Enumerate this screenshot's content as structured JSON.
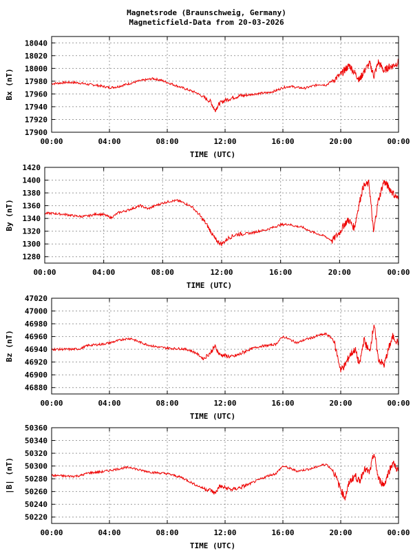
{
  "title": "Magnetsrode (Braunschweig, Germany)",
  "subtitle": "Magneticfield-Data from 20-03-2026",
  "series_color": "#ee0000",
  "chart_data": [
    {
      "type": "line",
      "ylabel": "Bx (nT)",
      "xlabel": "TIME (UTC)",
      "ylim": [
        17900,
        18050
      ],
      "yticks": [
        17900,
        17920,
        17940,
        17960,
        17980,
        18000,
        18020,
        18040
      ],
      "xlim": [
        0,
        24
      ],
      "xticks": [
        "00:00",
        "04:00",
        "08:00",
        "12:00",
        "16:00",
        "20:00",
        "00:00"
      ],
      "grid": true,
      "x": [
        0.0,
        0.5,
        1.0,
        1.5,
        2.0,
        2.5,
        3.0,
        3.5,
        4.0,
        4.5,
        5.0,
        5.5,
        6.0,
        6.5,
        7.0,
        7.5,
        8.0,
        8.5,
        9.0,
        9.5,
        10.0,
        10.5,
        11.0,
        11.3,
        11.6,
        12.0,
        12.5,
        13.0,
        13.5,
        14.0,
        14.5,
        15.0,
        15.5,
        16.0,
        16.5,
        17.0,
        17.5,
        18.0,
        18.5,
        19.0,
        19.5,
        20.0,
        20.3,
        20.6,
        21.0,
        21.3,
        21.6,
        22.0,
        22.3,
        22.6,
        23.0,
        23.3,
        23.6,
        24.0
      ],
      "y": [
        17976,
        17977,
        17978,
        17978,
        17977,
        17975,
        17974,
        17972,
        17970,
        17971,
        17974,
        17977,
        17980,
        17982,
        17984,
        17982,
        17978,
        17974,
        17970,
        17966,
        17962,
        17955,
        17948,
        17934,
        17945,
        17950,
        17954,
        17957,
        17958,
        17960,
        17961,
        17962,
        17965,
        17970,
        17972,
        17970,
        17969,
        17972,
        17975,
        17974,
        17982,
        17990,
        17998,
        18005,
        17992,
        17982,
        17995,
        18008,
        17988,
        18010,
        17996,
        18002,
        18004,
        18010
      ]
    },
    {
      "type": "line",
      "ylabel": "By (nT)",
      "xlabel": "TIME (UTC)",
      "ylim": [
        1270,
        1420
      ],
      "yticks": [
        1280,
        1300,
        1320,
        1340,
        1360,
        1380,
        1400,
        1420
      ],
      "xlim": [
        0,
        24
      ],
      "xticks": [
        "00:00",
        "04:00",
        "08:00",
        "12:00",
        "16:00",
        "20:00",
        "00:00"
      ],
      "grid": true,
      "x": [
        0.0,
        0.5,
        1.0,
        1.5,
        2.0,
        2.5,
        3.0,
        3.5,
        4.0,
        4.5,
        5.0,
        5.5,
        6.0,
        6.5,
        7.0,
        7.5,
        8.0,
        8.5,
        9.0,
        9.5,
        10.0,
        10.5,
        11.0,
        11.3,
        11.6,
        12.0,
        12.5,
        13.0,
        13.5,
        14.0,
        14.5,
        15.0,
        15.5,
        16.0,
        16.5,
        17.0,
        17.5,
        18.0,
        18.5,
        19.0,
        19.5,
        20.0,
        20.3,
        20.6,
        21.0,
        21.3,
        21.6,
        22.0,
        22.3,
        22.6,
        23.0,
        23.3,
        23.6,
        24.0
      ],
      "y": [
        1348,
        1348,
        1347,
        1346,
        1344,
        1343,
        1344,
        1347,
        1346,
        1341,
        1349,
        1352,
        1356,
        1360,
        1355,
        1360,
        1364,
        1367,
        1368,
        1364,
        1358,
        1345,
        1330,
        1318,
        1306,
        1300,
        1310,
        1315,
        1316,
        1317,
        1320,
        1322,
        1326,
        1330,
        1331,
        1328,
        1326,
        1320,
        1316,
        1312,
        1305,
        1318,
        1330,
        1338,
        1325,
        1360,
        1390,
        1395,
        1318,
        1365,
        1398,
        1390,
        1380,
        1370
      ]
    },
    {
      "type": "line",
      "ylabel": "Bz (nT)",
      "xlabel": "TIME (UTC)",
      "ylim": [
        46870,
        47020
      ],
      "yticks": [
        46880,
        46900,
        46920,
        46940,
        46960,
        46980,
        47000,
        47020
      ],
      "xlim": [
        0,
        24
      ],
      "xticks": [
        "00:00",
        "04:00",
        "08:00",
        "12:00",
        "16:00",
        "20:00",
        "00:00"
      ],
      "grid": true,
      "x": [
        0.0,
        0.5,
        1.0,
        1.5,
        2.0,
        2.5,
        3.0,
        3.5,
        4.0,
        4.5,
        5.0,
        5.5,
        6.0,
        6.5,
        7.0,
        7.5,
        8.0,
        8.5,
        9.0,
        9.5,
        10.0,
        10.5,
        11.0,
        11.3,
        11.6,
        12.0,
        12.5,
        13.0,
        13.5,
        14.0,
        14.5,
        15.0,
        15.5,
        16.0,
        16.5,
        17.0,
        17.5,
        18.0,
        18.5,
        19.0,
        19.5,
        20.0,
        20.3,
        20.6,
        21.0,
        21.3,
        21.6,
        22.0,
        22.3,
        22.6,
        23.0,
        23.3,
        23.6,
        24.0
      ],
      "y": [
        46940,
        46940,
        46940,
        46940,
        46941,
        46946,
        46947,
        46948,
        46950,
        46953,
        46956,
        46957,
        46952,
        46948,
        46945,
        46943,
        46942,
        46941,
        46941,
        46939,
        46934,
        46925,
        46935,
        46945,
        46932,
        46930,
        46928,
        46932,
        46938,
        46942,
        46945,
        46946,
        46948,
        46960,
        46955,
        46950,
        46955,
        46958,
        46962,
        46964,
        46955,
        46908,
        46915,
        46930,
        46940,
        46915,
        46955,
        46935,
        46980,
        46925,
        46915,
        46940,
        46960,
        46950
      ]
    },
    {
      "type": "line",
      "ylabel": "|B| (nT)",
      "xlabel": "TIME (UTC)",
      "ylim": [
        50210,
        50360
      ],
      "yticks": [
        50220,
        50240,
        50260,
        50280,
        50300,
        50320,
        50340,
        50360
      ],
      "xlim": [
        0,
        24
      ],
      "xticks": [
        "00:00",
        "04:00",
        "08:00",
        "12:00",
        "16:00",
        "20:00",
        "00:00"
      ],
      "grid": true,
      "x": [
        0.0,
        0.5,
        1.0,
        1.5,
        2.0,
        2.5,
        3.0,
        3.5,
        4.0,
        4.5,
        5.0,
        5.5,
        6.0,
        6.5,
        7.0,
        7.5,
        8.0,
        8.5,
        9.0,
        9.5,
        10.0,
        10.5,
        11.0,
        11.3,
        11.6,
        12.0,
        12.5,
        13.0,
        13.5,
        14.0,
        14.5,
        15.0,
        15.5,
        16.0,
        16.5,
        17.0,
        17.5,
        18.0,
        18.5,
        19.0,
        19.5,
        20.0,
        20.3,
        20.6,
        21.0,
        21.3,
        21.6,
        22.0,
        22.3,
        22.6,
        23.0,
        23.3,
        23.6,
        24.0
      ],
      "y": [
        50285,
        50285,
        50284,
        50284,
        50285,
        50289,
        50290,
        50291,
        50293,
        50295,
        50297,
        50298,
        50294,
        50292,
        50290,
        50289,
        50288,
        50285,
        50282,
        50276,
        50270,
        50265,
        50262,
        50257,
        50268,
        50266,
        50263,
        50266,
        50270,
        50275,
        50280,
        50285,
        50288,
        50300,
        50296,
        50292,
        50294,
        50296,
        50300,
        50303,
        50292,
        50263,
        50250,
        50275,
        50285,
        50275,
        50295,
        50290,
        50320,
        50280,
        50270,
        50290,
        50305,
        50292
      ]
    }
  ]
}
